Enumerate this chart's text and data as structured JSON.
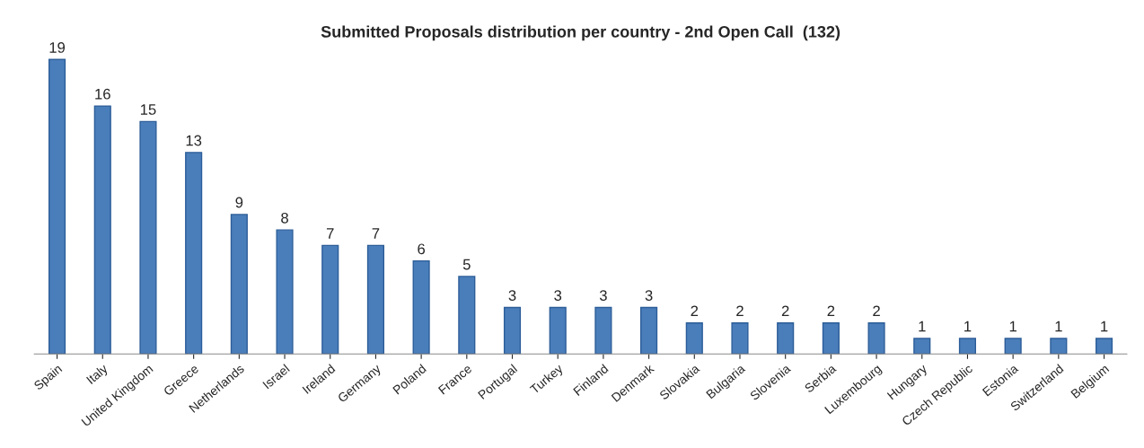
{
  "chart_data": {
    "type": "bar",
    "title": "Submitted Proposals distribution per country - 2nd Open Call  (132)",
    "categories": [
      "Spain",
      "Italy",
      "United Kingdom",
      "Greece",
      "Netherlands",
      "Israel",
      "Ireland",
      "Germany",
      "Poland",
      "France",
      "Portugal",
      "Turkey",
      "Finland",
      "Denmark",
      "Slovakia",
      "Bulgaria",
      "Slovenia",
      "Serbia",
      "Luxembourg",
      "Hungary",
      "Czech Republic",
      "Estonia",
      "Switzerland",
      "Belgium"
    ],
    "values": [
      19,
      16,
      15,
      13,
      9,
      8,
      7,
      7,
      6,
      5,
      3,
      3,
      3,
      3,
      2,
      2,
      2,
      2,
      2,
      1,
      1,
      1,
      1,
      1
    ],
    "color": "#4a7ebb",
    "data_labels": true,
    "tick_labels": "x",
    "grid": false
  }
}
